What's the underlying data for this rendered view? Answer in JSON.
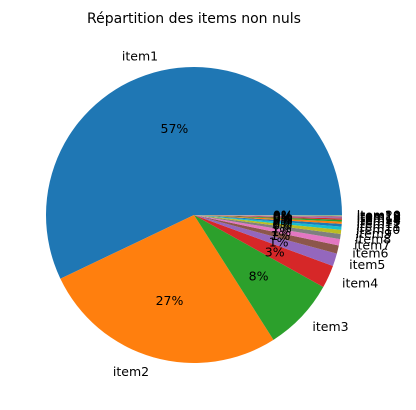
{
  "chart_data": {
    "type": "pie",
    "title": "Répartition des items non nuls",
    "categories": [
      "item1",
      "item2",
      "item3",
      "item4",
      "item5",
      "item6",
      "item7",
      "item8",
      "item9",
      "item10",
      "item11",
      "item12",
      "item13",
      "item14",
      "item15",
      "item16",
      "item17",
      "item18",
      "item19",
      "item20"
    ],
    "values": [
      57.2,
      27.0,
      7.9,
      2.5,
      1.4,
      0.9,
      0.7,
      0.55,
      0.45,
      0.35,
      0.3,
      0.25,
      0.2,
      0.15,
      0.1,
      0.08,
      0.06,
      0.05,
      0.04,
      0.03
    ],
    "value_labels": [
      "57%",
      "27%",
      "8%",
      "3%",
      "1%",
      "1%",
      "1%",
      "1%",
      "0%",
      "0%",
      "0%",
      "0%",
      "0%",
      "0%",
      "0%",
      "0%",
      "0%",
      "0%",
      "0%",
      "0%"
    ],
    "colors": [
      "#1f77b4",
      "#ff7f0e",
      "#2ca02c",
      "#d62728",
      "#9467bd",
      "#8c564b",
      "#e377c2",
      "#7f7f7f",
      "#bcbd22",
      "#17becf",
      "#1f77b4",
      "#ff7f0e",
      "#2ca02c",
      "#d62728",
      "#9467bd",
      "#8c564b",
      "#e377c2",
      "#7f7f7f",
      "#bcbd22",
      "#17becf"
    ],
    "start_angle_deg": 0,
    "direction": "counterclockwise"
  }
}
